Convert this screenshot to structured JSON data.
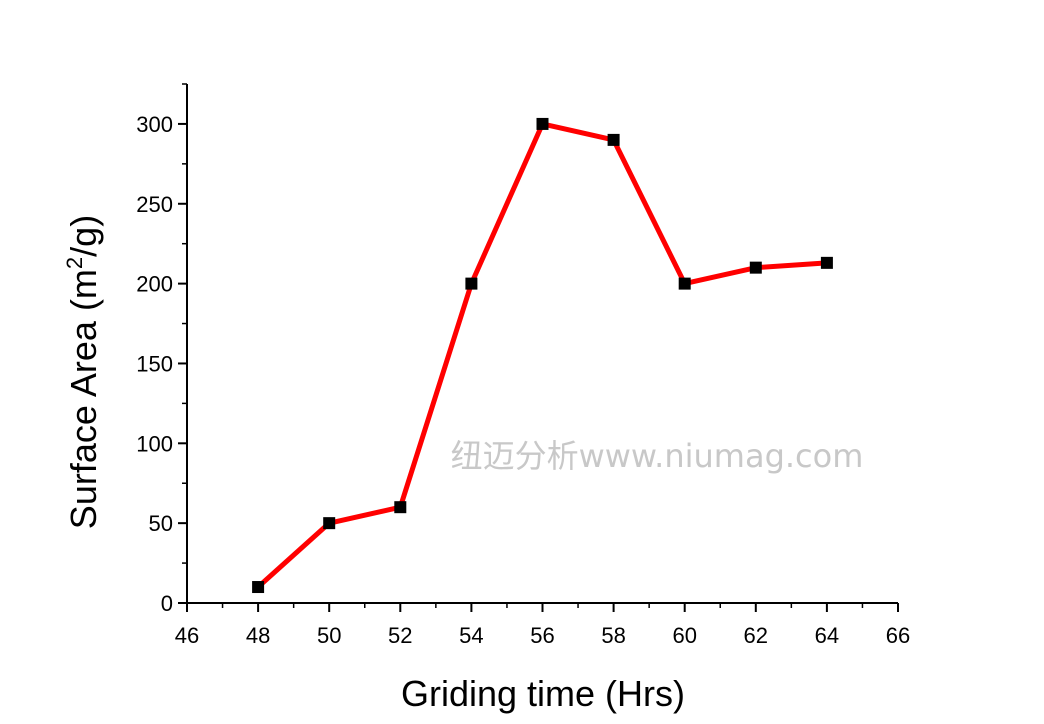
{
  "chart_data": {
    "type": "line",
    "xlabel": "Griding time (Hrs)",
    "ylabel_main": "Surface Area (m",
    "ylabel_sup": "2",
    "ylabel_end": "/g)",
    "xlim": [
      46,
      66
    ],
    "ylim": [
      0,
      325
    ],
    "xticks": [
      46,
      48,
      50,
      52,
      54,
      56,
      58,
      60,
      62,
      64,
      66
    ],
    "yticks": [
      0,
      50,
      100,
      150,
      200,
      250,
      300
    ],
    "grid": false,
    "series": [
      {
        "x": [
          48,
          50,
          52,
          54,
          56,
          58,
          60,
          62,
          64
        ],
        "y": [
          10,
          50,
          60,
          200,
          300,
          290,
          200,
          210,
          213
        ],
        "line_color": "#ff0000",
        "marker_color": "#000000",
        "marker": "square"
      }
    ]
  },
  "watermark": "纽迈分析www.niumag.com"
}
